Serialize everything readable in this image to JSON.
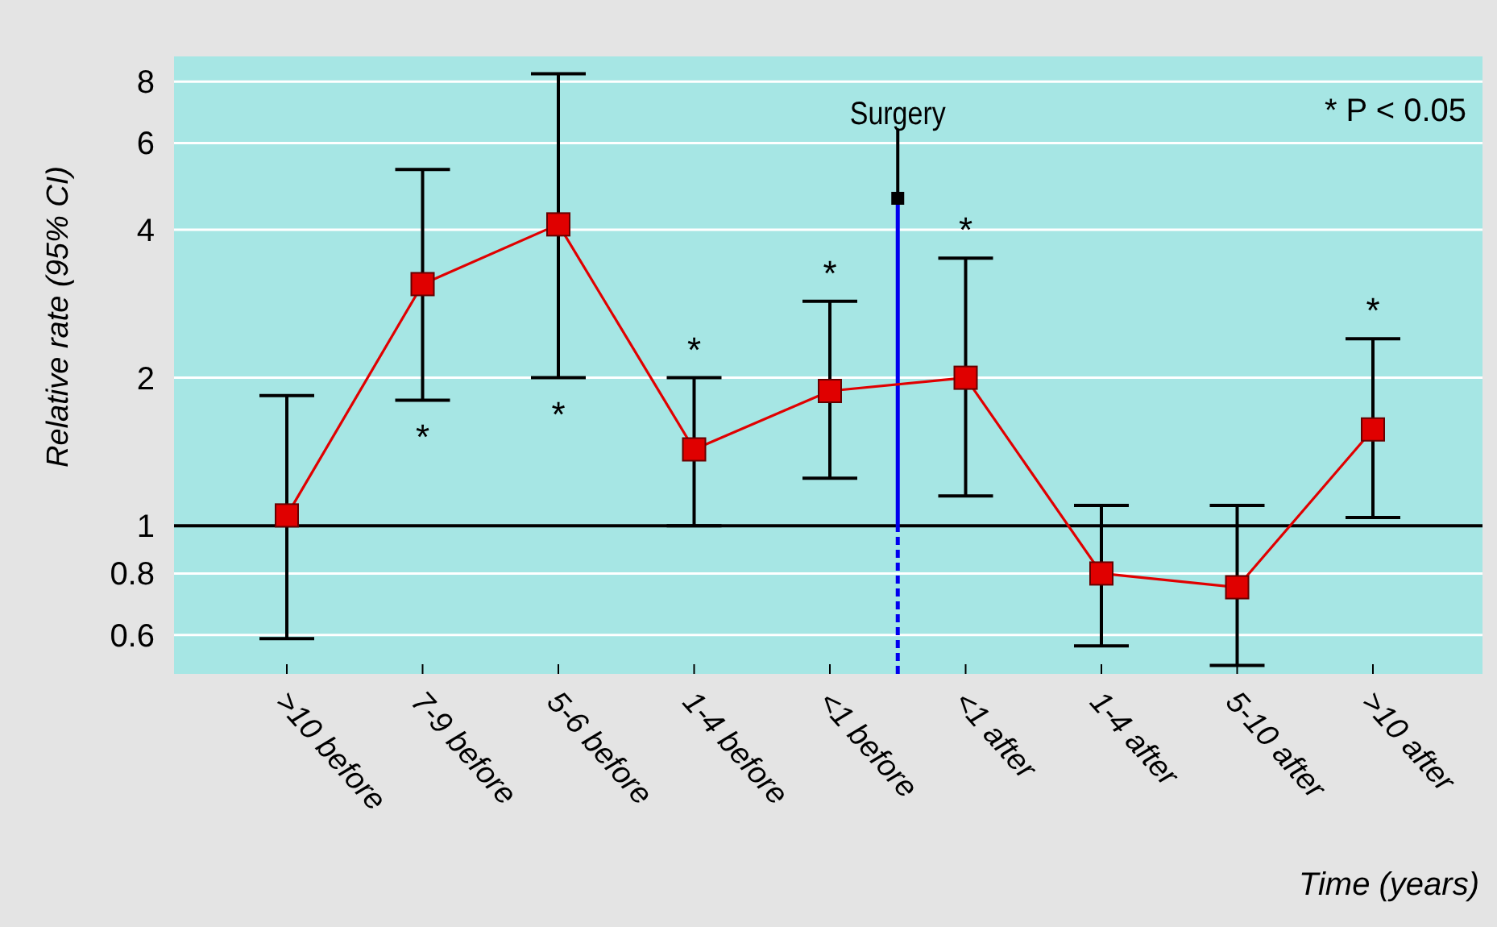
{
  "chart_data": {
    "type": "line",
    "ylabel": "Relative rate (95% CI)",
    "xlabel": "Time (years)",
    "categories": [
      ">10 before",
      "7-9 before",
      "5-6 before",
      "1-4 before",
      "<1 before",
      "<1 after",
      "1-4 after",
      "5-10 after",
      ">10 after"
    ],
    "series": [
      {
        "color": "#e00000",
        "values": [
          1.05,
          3.1,
          4.1,
          1.43,
          1.88,
          2.0,
          0.8,
          0.75,
          1.57
        ],
        "errors": [
          [
            0.59,
            1.84
          ],
          [
            1.8,
            5.3
          ],
          [
            2.0,
            8.3
          ],
          [
            1.0,
            2.0
          ],
          [
            1.25,
            2.86
          ],
          [
            1.15,
            3.5
          ],
          [
            0.57,
            1.1
          ],
          [
            0.52,
            1.1
          ],
          [
            1.04,
            2.4
          ]
        ]
      }
    ],
    "log": "y",
    "ylim": [
      0.5,
      9
    ],
    "yticks": [
      0.6,
      0.8,
      1,
      2,
      4,
      6,
      8
    ],
    "grid": "y",
    "marker": "square",
    "line_style": "solid",
    "ref_lines": [
      {
        "axis": "y",
        "value": 1,
        "color": "#000000"
      }
    ],
    "annotations": [
      {
        "text": "*",
        "x": "7-9 before",
        "y": 1.8
      },
      {
        "text": "*",
        "x": "5-6 before",
        "y": 2.0
      },
      {
        "text": "*",
        "x": "1-4 before",
        "y": 2.0
      },
      {
        "text": "*",
        "x": "<1 before",
        "y": 2.86
      },
      {
        "text": "*",
        "x": "<1 after",
        "y": 3.5
      },
      {
        "text": "*",
        "x": ">10 after",
        "y": 2.4
      },
      "Surgery",
      "* P < 0.05"
    ]
  }
}
